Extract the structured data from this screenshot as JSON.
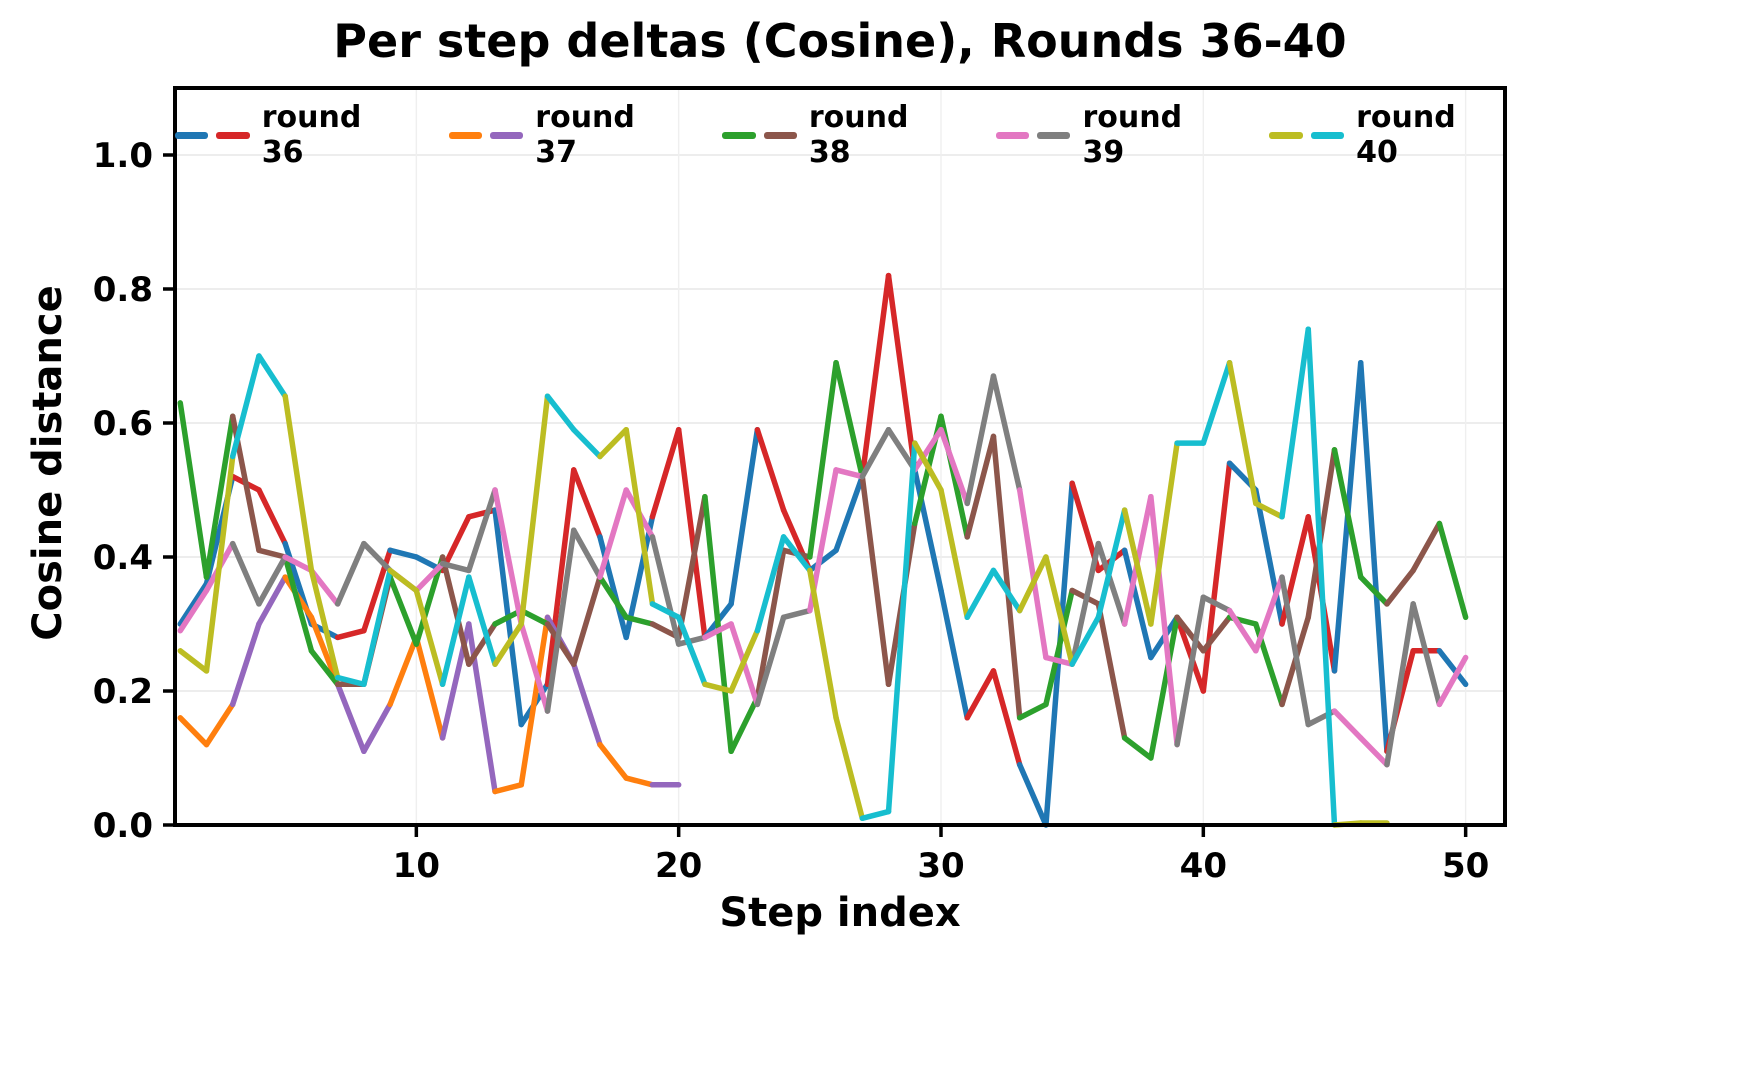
{
  "title": "Per step deltas (Cosine), Rounds 36-40",
  "chart_data": {
    "type": "line",
    "title": "Per step deltas (Cosine), Rounds 36-40",
    "xlabel": "Step index",
    "ylabel": "Cosine distance",
    "xlim": [
      0.8,
      51.5
    ],
    "ylim": [
      0.0,
      1.1
    ],
    "x_ticks": [
      10,
      20,
      30,
      40,
      50
    ],
    "y_ticks": [
      0.0,
      0.2,
      0.4,
      0.6,
      0.8,
      1.0
    ],
    "grid": true,
    "legend_position": "top",
    "series": [
      {
        "name": "round 36",
        "colors": [
          "#1f77b4",
          "#d62728"
        ],
        "x_start": 1,
        "values": [
          0.3,
          0.36,
          0.52,
          0.5,
          0.42,
          0.3,
          0.28,
          0.29,
          0.41,
          0.4,
          0.38,
          0.46,
          0.47,
          0.15,
          0.21,
          0.53,
          0.43,
          0.28,
          0.46,
          0.59,
          0.28,
          0.33,
          0.59,
          0.47,
          0.38,
          0.41,
          0.52,
          0.82,
          0.53,
          0.35,
          0.16,
          0.23,
          0.09,
          0.0,
          0.51,
          0.38,
          0.41,
          0.25,
          0.31,
          0.2,
          0.54,
          0.5,
          0.3,
          0.46,
          0.23,
          0.69,
          0.11,
          0.26,
          0.26,
          0.21
        ]
      },
      {
        "name": "round 37",
        "colors": [
          "#ff7f0e",
          "#9467bd"
        ],
        "x_start": 1,
        "values": [
          0.16,
          0.12,
          0.18,
          0.3,
          0.37,
          0.31,
          0.21,
          0.11,
          0.18,
          0.28,
          0.13,
          0.3,
          0.05,
          0.06,
          0.31,
          0.24,
          0.12,
          0.07,
          0.06,
          0.06
        ]
      },
      {
        "name": "round 38",
        "colors": [
          "#2ca02c",
          "#8c564b"
        ],
        "x_start": 1,
        "values": [
          0.63,
          0.37,
          0.61,
          0.41,
          0.4,
          0.26,
          0.21,
          0.21,
          0.37,
          0.27,
          0.4,
          0.24,
          0.3,
          0.32,
          0.3,
          0.24,
          0.37,
          0.31,
          0.3,
          0.28,
          0.49,
          0.11,
          0.19,
          0.41,
          0.4,
          0.69,
          0.52,
          0.21,
          0.45,
          0.61,
          0.43,
          0.58,
          0.16,
          0.18,
          0.35,
          0.33,
          0.13,
          0.1,
          0.31,
          0.26,
          0.31,
          0.3,
          0.18,
          0.31,
          0.56,
          0.37,
          0.33,
          0.38,
          0.45,
          0.31
        ]
      },
      {
        "name": "round 39",
        "colors": [
          "#e377c2",
          "#7f7f7f"
        ],
        "x_start": 1,
        "values": [
          0.29,
          0.35,
          0.42,
          0.33,
          0.4,
          0.38,
          0.33,
          0.42,
          0.38,
          0.35,
          0.39,
          0.38,
          0.5,
          0.3,
          0.17,
          0.44,
          0.37,
          0.5,
          0.43,
          0.27,
          0.28,
          0.3,
          0.18,
          0.31,
          0.32,
          0.53,
          0.52,
          0.59,
          0.53,
          0.59,
          0.48,
          0.67,
          0.5,
          0.25,
          0.24,
          0.42,
          0.3,
          0.49,
          0.12,
          0.34,
          0.32,
          0.26,
          0.37,
          0.15,
          0.17,
          0.13,
          0.09,
          0.33,
          0.18,
          0.25
        ]
      },
      {
        "name": "round 40",
        "colors": [
          "#bcbd22",
          "#17becf"
        ],
        "x_start": 1,
        "values": [
          0.26,
          0.23,
          0.55,
          0.7,
          0.64,
          0.38,
          0.22,
          0.21,
          0.38,
          0.35,
          0.21,
          0.37,
          0.24,
          0.3,
          0.64,
          0.59,
          0.55,
          0.59,
          0.33,
          0.31,
          0.21,
          0.2,
          0.29,
          0.43,
          0.38,
          0.16,
          0.01,
          0.02,
          0.57,
          0.5,
          0.31,
          0.38,
          0.32,
          0.4,
          0.24,
          0.31,
          0.47,
          0.3,
          0.57,
          0.57,
          0.69,
          0.48,
          0.46,
          0.74,
          0.0,
          0.003,
          0.003
        ]
      }
    ]
  }
}
